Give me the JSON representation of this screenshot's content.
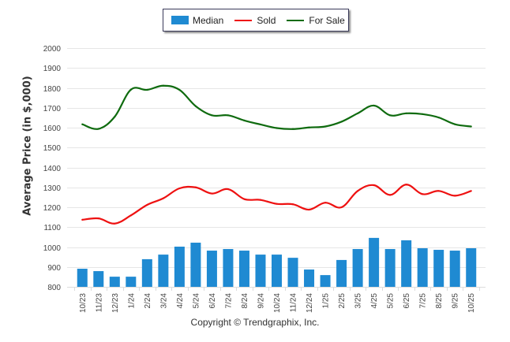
{
  "legend": {
    "items": [
      {
        "label": "Median",
        "kind": "bar",
        "color": "#1f8ad2"
      },
      {
        "label": "Sold",
        "kind": "line",
        "color": "#ee1111"
      },
      {
        "label": "For Sale",
        "kind": "line",
        "color": "#0f6b0f"
      }
    ]
  },
  "copyright": "Copyright © Trendgraphix, Inc.",
  "chart_data": {
    "type": "bar+line",
    "title": "",
    "xlabel": "",
    "ylabel": "Average Price (in $,000)",
    "ylim": [
      800,
      2000
    ],
    "yticks": [
      800,
      900,
      1000,
      1100,
      1200,
      1300,
      1400,
      1500,
      1600,
      1700,
      1800,
      1900,
      2000
    ],
    "grid": true,
    "legend_position": "top-center",
    "categories": [
      "10/23",
      "11/23",
      "12/23",
      "1/24",
      "2/24",
      "3/24",
      "4/24",
      "5/24",
      "6/24",
      "7/24",
      "8/24",
      "9/24",
      "10/24",
      "11/24",
      "12/24",
      "1/25",
      "2/25",
      "3/25",
      "4/25",
      "5/25",
      "6/25",
      "7/25",
      "8/25",
      "9/25",
      "10/25"
    ],
    "series": [
      {
        "name": "Median",
        "type": "bar",
        "color": "#1f8ad2",
        "values": [
          891,
          879,
          851,
          851,
          939,
          962,
          1002,
          1022,
          982,
          990,
          982,
          962,
          962,
          946,
          887,
          859,
          935,
          990,
          1046,
          990,
          1034,
          994,
          986,
          982,
          994
        ]
      },
      {
        "name": "Sold",
        "type": "line",
        "color": "#ee1111",
        "values": [
          1137,
          1144,
          1118,
          1159,
          1212,
          1245,
          1295,
          1300,
          1269,
          1291,
          1241,
          1237,
          1217,
          1215,
          1188,
          1223,
          1200,
          1282,
          1311,
          1262,
          1314,
          1266,
          1282,
          1258,
          1282
        ]
      },
      {
        "name": "For Sale",
        "type": "line",
        "color": "#0f6b0f",
        "values": [
          1617,
          1594,
          1655,
          1791,
          1790,
          1811,
          1790,
          1708,
          1662,
          1662,
          1636,
          1616,
          1598,
          1593,
          1601,
          1606,
          1630,
          1672,
          1711,
          1662,
          1672,
          1668,
          1651,
          1617,
          1606
        ]
      }
    ]
  }
}
